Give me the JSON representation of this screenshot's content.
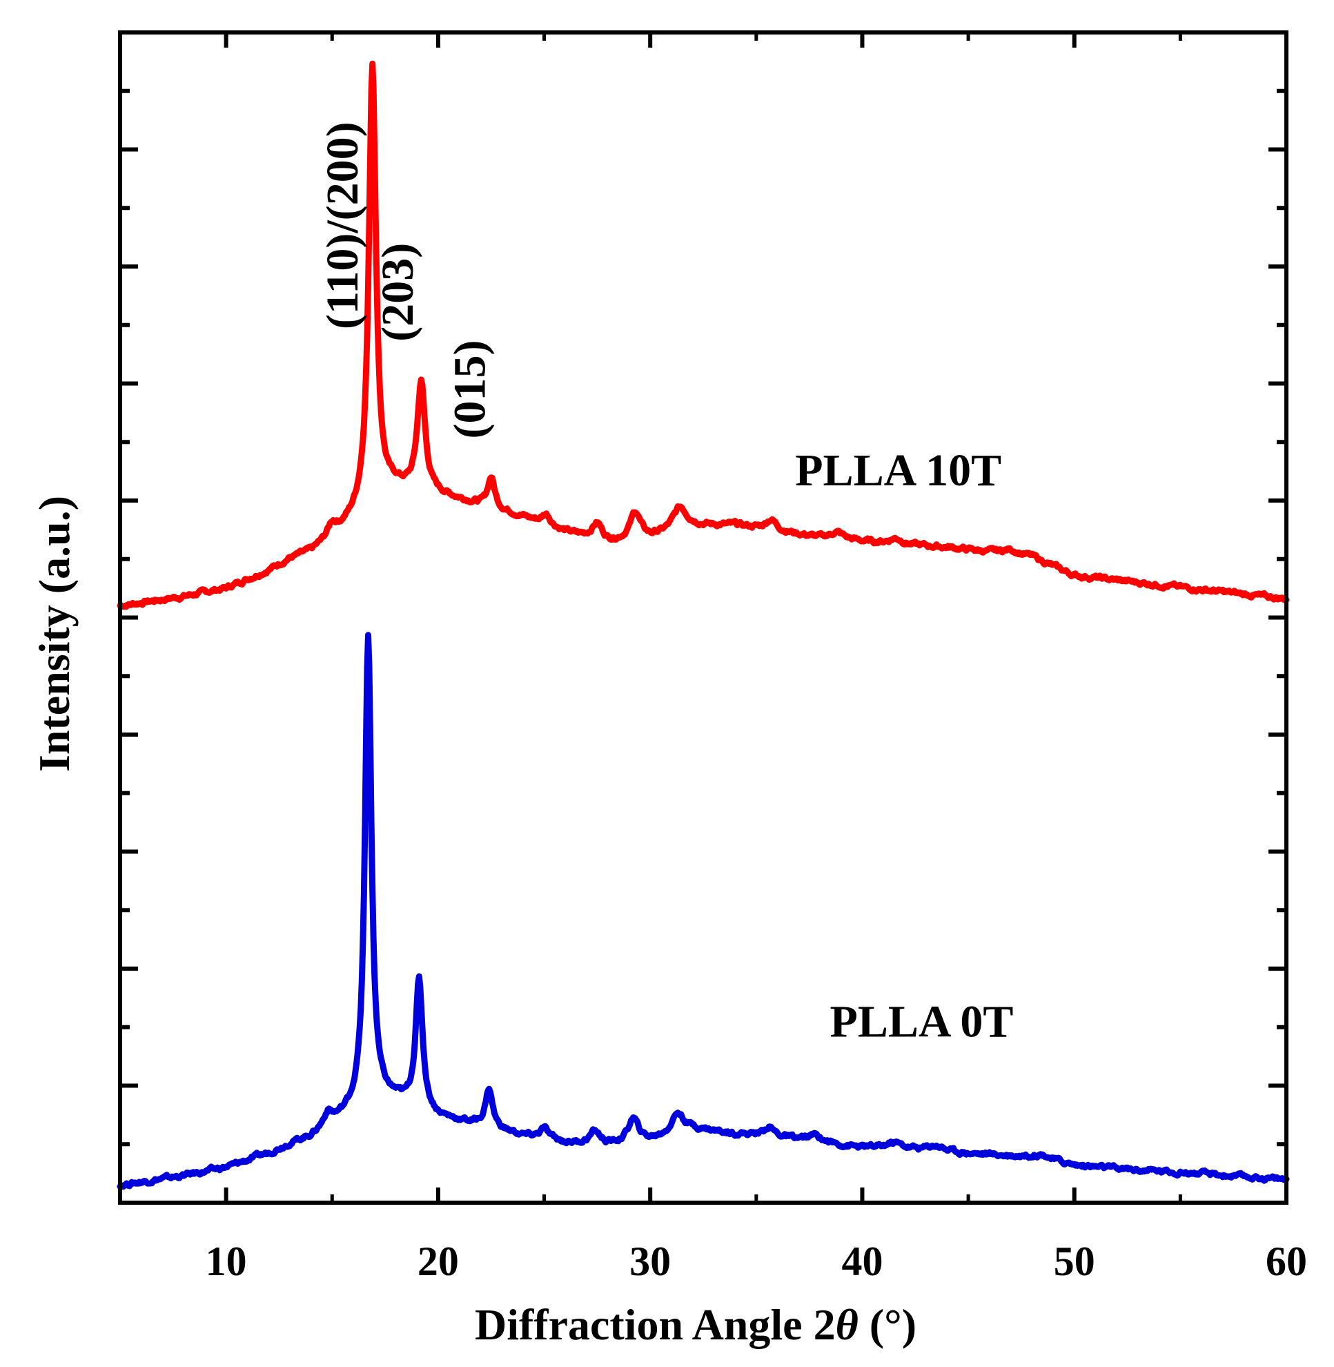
{
  "chart_data": {
    "type": "line",
    "title": "",
    "xlabel": "Diffraction Angle 2θ (°)",
    "xlabel_parts": {
      "main": "Diffraction Angle 2",
      "symbol": "θ",
      "unit": " (°)"
    },
    "ylabel": "Intensity (a.u.)",
    "xlim": [
      5,
      60
    ],
    "ylim": [
      0,
      100
    ],
    "xticks": [
      "10",
      "20",
      "30",
      "40",
      "50",
      "60"
    ],
    "ytick_values": [
      5,
      10,
      15,
      20,
      25,
      30,
      35,
      40,
      45,
      50,
      55,
      60,
      65,
      70,
      75,
      80,
      85,
      90,
      95
    ],
    "ytick_labels_shown": false,
    "grid": false,
    "series": [
      {
        "name": "PLLA 10T",
        "color": "#ff0000",
        "baseline": [
          [
            5,
            51
          ],
          [
            8,
            51.8
          ],
          [
            10,
            52.5
          ],
          [
            12,
            54
          ],
          [
            13,
            55
          ],
          [
            14,
            55.6
          ],
          [
            15,
            56.8
          ],
          [
            16,
            58.3
          ],
          [
            17,
            60
          ],
          [
            18,
            61
          ],
          [
            20,
            60.5
          ],
          [
            22,
            59.6
          ],
          [
            24,
            58.6
          ],
          [
            26,
            57.3
          ],
          [
            28,
            56.4
          ],
          [
            30,
            56.8
          ],
          [
            32,
            57.8
          ],
          [
            34,
            57.9
          ],
          [
            36,
            57.4
          ],
          [
            38,
            56.8
          ],
          [
            40,
            56.5
          ],
          [
            42,
            56.2
          ],
          [
            44,
            56
          ],
          [
            46,
            55.6
          ],
          [
            48,
            55.2
          ],
          [
            50,
            53.6
          ],
          [
            52,
            53.2
          ],
          [
            55,
            52.6
          ],
          [
            58,
            52
          ],
          [
            60,
            51.6
          ]
        ],
        "peaks": [
          [
            15,
            1.1,
            0.25
          ],
          [
            16.9,
            37.5,
            0.2
          ],
          [
            19.2,
            9.3,
            0.22
          ],
          [
            22.5,
            2.6,
            0.2
          ],
          [
            25.1,
            0.9,
            0.25
          ],
          [
            27.5,
            1.4,
            0.3
          ],
          [
            29.3,
            2.3,
            0.3
          ],
          [
            31.4,
            1.9,
            0.4
          ],
          [
            35.7,
            0.9,
            0.3
          ],
          [
            38.8,
            0.6,
            0.4
          ],
          [
            41.6,
            0.5,
            0.4
          ],
          [
            47,
            0.4,
            0.5
          ]
        ]
      },
      {
        "name": "PLLA 0T",
        "color": "#0000dd",
        "baseline": [
          [
            5,
            1.5
          ],
          [
            8,
            2.3
          ],
          [
            10,
            3
          ],
          [
            12,
            4.2
          ],
          [
            13,
            5
          ],
          [
            14,
            5.6
          ],
          [
            15,
            6.7
          ],
          [
            16,
            7.8
          ],
          [
            17,
            8.8
          ],
          [
            18,
            8.7
          ],
          [
            20,
            7.3
          ],
          [
            22,
            6.6
          ],
          [
            24,
            5.7
          ],
          [
            26,
            5.1
          ],
          [
            28,
            4.9
          ],
          [
            30,
            5.3
          ],
          [
            32,
            6.3
          ],
          [
            34,
            5.9
          ],
          [
            36,
            5.6
          ],
          [
            38,
            5.1
          ],
          [
            40,
            4.7
          ],
          [
            42,
            4.6
          ],
          [
            44,
            4.3
          ],
          [
            46,
            4.1
          ],
          [
            48,
            3.9
          ],
          [
            50,
            3.2
          ],
          [
            52,
            2.9
          ],
          [
            55,
            2.6
          ],
          [
            58,
            2.2
          ],
          [
            60,
            2
          ]
        ],
        "peaks": [
          [
            14.8,
            1.1,
            0.25
          ],
          [
            16.7,
            40,
            0.18
          ],
          [
            19.1,
            11,
            0.2
          ],
          [
            22.4,
            3.3,
            0.2
          ],
          [
            25,
            0.9,
            0.25
          ],
          [
            27.4,
            1.1,
            0.3
          ],
          [
            29.2,
            2,
            0.3
          ],
          [
            31.3,
            1.7,
            0.35
          ],
          [
            35.6,
            0.8,
            0.3
          ],
          [
            37.8,
            0.6,
            0.4
          ],
          [
            41.5,
            0.5,
            0.4
          ],
          [
            43.5,
            0.5,
            0.5
          ],
          [
            48.5,
            0.4,
            0.5
          ]
        ]
      }
    ],
    "annotations": [
      {
        "text": "(110)/(200)",
        "x": 16.2,
        "y": 83.5,
        "rotation": -90
      },
      {
        "text": "(203)",
        "x": 18.8,
        "y": 77.8,
        "rotation": -90
      },
      {
        "text": "(015)",
        "x": 22.2,
        "y": 69.5,
        "rotation": -90
      },
      {
        "text": "PLLA 10T",
        "x": 41.7,
        "y": 61.3,
        "rotation": 0
      },
      {
        "text": "PLLA 0T",
        "x": 42.8,
        "y": 14.2,
        "rotation": 0
      }
    ]
  }
}
